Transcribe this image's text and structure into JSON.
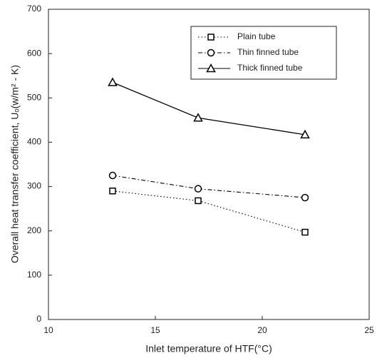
{
  "chart_data": {
    "type": "line",
    "x_label": "Inlet temperature of HTF(°C)",
    "y_label": "Overall heat transfer coefficient, Uₒ(w/m² - K)",
    "x": [
      13,
      17,
      22
    ],
    "series": [
      {
        "name": "Plain tube",
        "color": "#000000",
        "marker": "square",
        "dash": "dotted",
        "values": [
          290,
          268,
          197
        ]
      },
      {
        "name": "Thin finned tube",
        "color": "#000000",
        "marker": "circle",
        "dash": "dashdot",
        "values": [
          325,
          295,
          275
        ]
      },
      {
        "name": "Thick finned tube",
        "color": "#000000",
        "marker": "triangle",
        "dash": "solid",
        "values": [
          535,
          455,
          417
        ]
      }
    ],
    "xlim": [
      10,
      25
    ],
    "xticks": [
      10,
      15,
      20,
      25
    ],
    "ylim": [
      0,
      700
    ],
    "yticks": [
      0,
      100,
      200,
      300,
      400,
      500,
      600,
      700
    ],
    "grid": false,
    "legend": "upper right"
  }
}
